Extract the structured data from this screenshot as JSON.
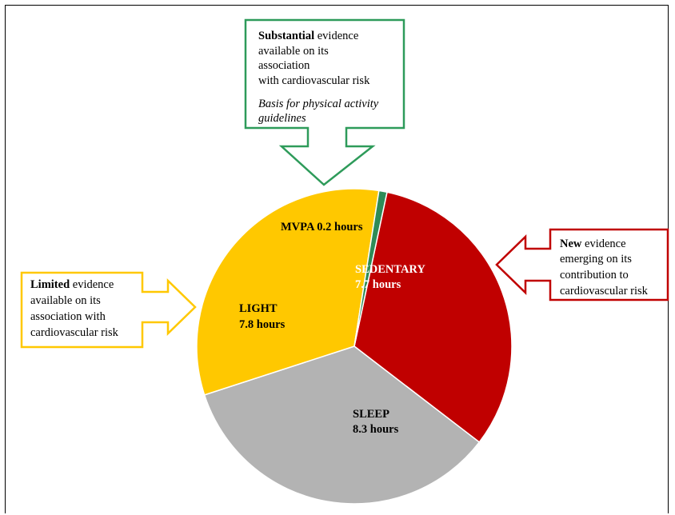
{
  "chart_data": {
    "type": "pie",
    "slices": [
      {
        "label": "SEDENTARY",
        "value": 7.7,
        "value_text": "7.7 hours",
        "color": "#c00000",
        "text_color": "#ffffff"
      },
      {
        "label": "SLEEP",
        "value": 8.3,
        "value_text": "8.3 hours",
        "color": "#b3b3b3",
        "text_color": "#000000"
      },
      {
        "label": "LIGHT",
        "value": 7.8,
        "value_text": "7.8 hours",
        "color": "#ffc800",
        "text_color": "#000000"
      },
      {
        "label": "MVPA",
        "value": 0.2,
        "value_text": "0.2 hours",
        "color": "#2e8b57",
        "text_color": "#000000"
      }
    ]
  },
  "callouts": {
    "mvpa": {
      "color": "#2e9b5a",
      "bold": "Substantial",
      "line1_rest": " evidence",
      "line2": "available on its",
      "line3": "association",
      "line4": "with cardiovascular risk",
      "italic1": "Basis for physical activity",
      "italic2": "guidelines"
    },
    "sedentary": {
      "color": "#c00000",
      "bold": "New",
      "line1_rest": " evidence",
      "line2": "emerging on its",
      "line3": "contribution  to",
      "line4": "cardiovascular risk"
    },
    "light": {
      "color": "#ffc800",
      "bold": "Limited",
      "line1_rest": " evidence",
      "line2": "available on its",
      "line3": "association with",
      "line4": "cardiovascular risk"
    }
  }
}
